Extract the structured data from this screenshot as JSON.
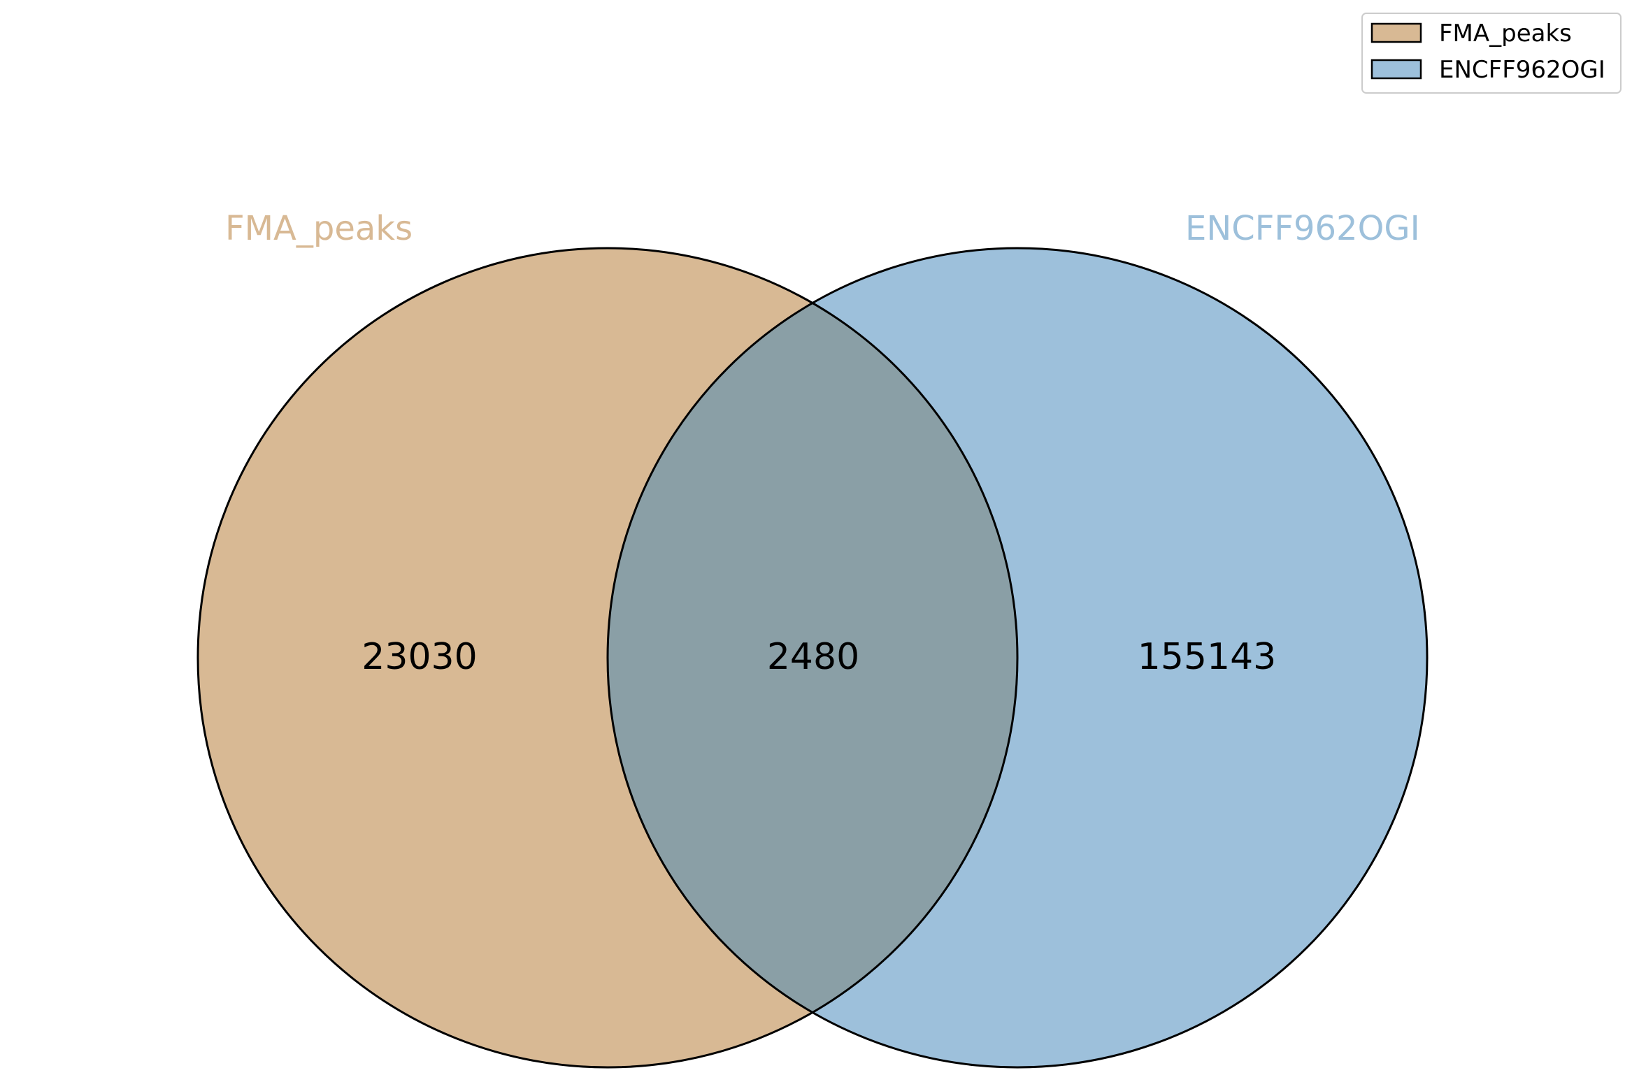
{
  "venn": {
    "sets": [
      {
        "name": "FMA_peaks",
        "color": "#d8b994"
      },
      {
        "name": "ENCFF962OGI",
        "color": "#9dc0db"
      }
    ],
    "overlap_color": "#8a9fa6",
    "counts": {
      "only_a": "23030",
      "both": "2480",
      "only_b": "155143"
    }
  },
  "legend": {
    "position": "top-right",
    "items": [
      {
        "label": "FMA_peaks",
        "color": "#d8b994"
      },
      {
        "label": "ENCFF962OGI",
        "color": "#9dc0db"
      }
    ]
  }
}
